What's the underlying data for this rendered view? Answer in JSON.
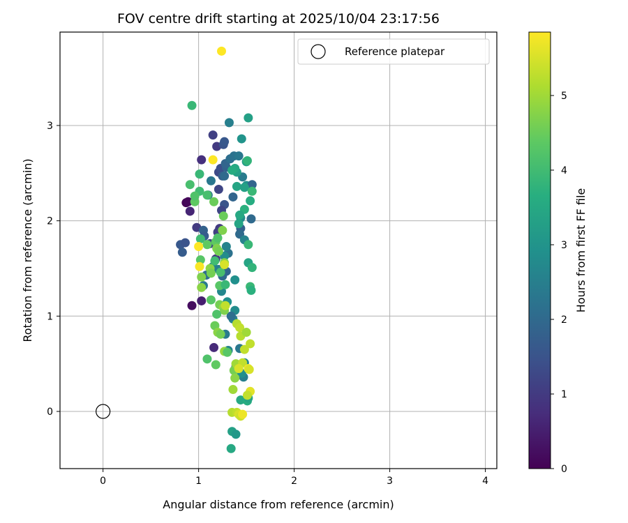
{
  "chart_data": {
    "type": "scatter",
    "title": "FOV centre drift starting at 2025/10/04 23:17:56",
    "xlabel": "Angular distance from reference (arcmin)",
    "ylabel": "Rotation from reference (arcmin)",
    "xlim": [
      -0.45,
      4.12
    ],
    "ylim": [
      -0.6,
      3.98
    ],
    "xticks": [
      0,
      1,
      2,
      3,
      4
    ],
    "yticks": [
      0,
      1,
      2,
      3
    ],
    "grid": true,
    "legend": {
      "position": "top-right",
      "entries": [
        "Reference platepar"
      ]
    },
    "colorbar": {
      "label": "Hours from first FF file",
      "min": 0,
      "max": 5.85,
      "ticks": [
        0,
        1,
        2,
        3,
        4,
        5
      ],
      "colormap": "viridis"
    },
    "reference_point": {
      "name": "Reference platepar",
      "x": 0,
      "y": 0
    },
    "points": [
      {
        "x": 0.87,
        "y": 2.19,
        "c": 0.05
      },
      {
        "x": 0.89,
        "y": 2.2,
        "c": 0.1
      },
      {
        "x": 0.91,
        "y": 2.1,
        "c": 0.6
      },
      {
        "x": 0.93,
        "y": 1.11,
        "c": 0.2
      },
      {
        "x": 1.03,
        "y": 1.16,
        "c": 0.5
      },
      {
        "x": 1.03,
        "y": 2.64,
        "c": 0.8
      },
      {
        "x": 1.16,
        "y": 0.67,
        "c": 0.7
      },
      {
        "x": 1.19,
        "y": 2.78,
        "c": 1.0
      },
      {
        "x": 1.15,
        "y": 2.9,
        "c": 1.1
      },
      {
        "x": 1.18,
        "y": 1.6,
        "c": 0.9
      },
      {
        "x": 1.21,
        "y": 2.33,
        "c": 1.2
      },
      {
        "x": 1.21,
        "y": 2.51,
        "c": 1.3
      },
      {
        "x": 1.26,
        "y": 2.8,
        "c": 1.5
      },
      {
        "x": 1.27,
        "y": 2.83,
        "c": 1.6
      },
      {
        "x": 1.23,
        "y": 2.55,
        "c": 1.4
      },
      {
        "x": 1.25,
        "y": 2.47,
        "c": 1.7
      },
      {
        "x": 1.27,
        "y": 2.17,
        "c": 1.5
      },
      {
        "x": 1.24,
        "y": 2.11,
        "c": 1.2
      },
      {
        "x": 1.22,
        "y": 1.92,
        "c": 1.0
      },
      {
        "x": 1.2,
        "y": 1.88,
        "c": 1.1
      },
      {
        "x": 1.29,
        "y": 2.56,
        "c": 1.8
      },
      {
        "x": 1.28,
        "y": 2.6,
        "c": 1.9
      },
      {
        "x": 1.27,
        "y": 2.47,
        "c": 2.0
      },
      {
        "x": 1.33,
        "y": 2.65,
        "c": 2.1
      },
      {
        "x": 1.36,
        "y": 2.25,
        "c": 1.9
      },
      {
        "x": 1.37,
        "y": 2.68,
        "c": 2.2
      },
      {
        "x": 1.32,
        "y": 3.03,
        "c": 2.5
      },
      {
        "x": 1.42,
        "y": 2.68,
        "c": 2.3
      },
      {
        "x": 1.46,
        "y": 2.46,
        "c": 2.4
      },
      {
        "x": 1.44,
        "y": 1.92,
        "c": 1.8
      },
      {
        "x": 1.43,
        "y": 1.86,
        "c": 2.0
      },
      {
        "x": 1.48,
        "y": 1.8,
        "c": 2.6
      },
      {
        "x": 1.5,
        "y": 2.37,
        "c": 2.9
      },
      {
        "x": 1.56,
        "y": 2.38,
        "c": 1.9
      },
      {
        "x": 1.55,
        "y": 2.02,
        "c": 2.0
      },
      {
        "x": 0.81,
        "y": 1.75,
        "c": 1.6
      },
      {
        "x": 0.83,
        "y": 1.67,
        "c": 1.7
      },
      {
        "x": 0.86,
        "y": 1.77,
        "c": 1.5
      },
      {
        "x": 0.98,
        "y": 1.93,
        "c": 1.0
      },
      {
        "x": 1.05,
        "y": 1.9,
        "c": 1.8
      },
      {
        "x": 1.06,
        "y": 1.84,
        "c": 1.7
      },
      {
        "x": 1.12,
        "y": 1.76,
        "c": 1.2
      },
      {
        "x": 1.1,
        "y": 2.27,
        "c": 2.2
      },
      {
        "x": 1.13,
        "y": 2.42,
        "c": 2.3
      },
      {
        "x": 1.08,
        "y": 1.43,
        "c": 2.1
      },
      {
        "x": 1.05,
        "y": 1.32,
        "c": 2.4
      },
      {
        "x": 1.15,
        "y": 1.52,
        "c": 2.7
      },
      {
        "x": 1.21,
        "y": 1.49,
        "c": 2.5
      },
      {
        "x": 1.25,
        "y": 1.42,
        "c": 2.0
      },
      {
        "x": 1.29,
        "y": 1.47,
        "c": 1.9
      },
      {
        "x": 1.31,
        "y": 1.66,
        "c": 2.2
      },
      {
        "x": 1.29,
        "y": 1.73,
        "c": 2.6
      },
      {
        "x": 1.27,
        "y": 1.63,
        "c": 2.8
      },
      {
        "x": 1.24,
        "y": 1.26,
        "c": 2.7
      },
      {
        "x": 1.3,
        "y": 1.15,
        "c": 2.9
      },
      {
        "x": 1.38,
        "y": 1.06,
        "c": 2.8
      },
      {
        "x": 1.36,
        "y": 0.97,
        "c": 2.6
      },
      {
        "x": 1.34,
        "y": 1.0,
        "c": 2.1
      },
      {
        "x": 1.28,
        "y": 0.81,
        "c": 2.4
      },
      {
        "x": 1.31,
        "y": 0.64,
        "c": 2.6
      },
      {
        "x": 1.43,
        "y": 0.66,
        "c": 2.3
      },
      {
        "x": 1.47,
        "y": 0.36,
        "c": 2.5
      },
      {
        "x": 1.45,
        "y": 0.4,
        "c": 2.9
      },
      {
        "x": 1.48,
        "y": 0.51,
        "c": 2.7
      },
      {
        "x": 1.39,
        "y": 0.47,
        "c": 2.0
      },
      {
        "x": 1.38,
        "y": 1.38,
        "c": 2.9
      },
      {
        "x": 1.44,
        "y": 2.03,
        "c": 2.8
      },
      {
        "x": 1.4,
        "y": 2.51,
        "c": 3.3
      },
      {
        "x": 1.45,
        "y": 2.86,
        "c": 3.0
      },
      {
        "x": 1.5,
        "y": 2.62,
        "c": 3.2
      },
      {
        "x": 1.52,
        "y": 3.08,
        "c": 3.3
      },
      {
        "x": 1.51,
        "y": 2.63,
        "c": 3.8
      },
      {
        "x": 1.38,
        "y": 2.55,
        "c": 3.5
      },
      {
        "x": 1.35,
        "y": 2.53,
        "c": 3.6
      },
      {
        "x": 1.4,
        "y": 2.36,
        "c": 3.4
      },
      {
        "x": 1.48,
        "y": 2.35,
        "c": 3.3
      },
      {
        "x": 1.54,
        "y": 2.21,
        "c": 3.6
      },
      {
        "x": 1.48,
        "y": 2.12,
        "c": 3.7
      },
      {
        "x": 1.43,
        "y": 2.06,
        "c": 3.5
      },
      {
        "x": 1.42,
        "y": 1.97,
        "c": 3.4
      },
      {
        "x": 1.52,
        "y": 1.75,
        "c": 3.9
      },
      {
        "x": 1.52,
        "y": 1.56,
        "c": 3.4
      },
      {
        "x": 1.56,
        "y": 1.51,
        "c": 3.8
      },
      {
        "x": 1.54,
        "y": 1.31,
        "c": 3.9
      },
      {
        "x": 1.55,
        "y": 1.27,
        "c": 3.7
      },
      {
        "x": 1.56,
        "y": 2.31,
        "c": 3.9
      },
      {
        "x": 1.44,
        "y": 0.12,
        "c": 3.5
      },
      {
        "x": 1.51,
        "y": 0.11,
        "c": 3.6
      },
      {
        "x": 1.52,
        "y": 0.14,
        "c": 3.4
      },
      {
        "x": 1.35,
        "y": -0.21,
        "c": 3.3
      },
      {
        "x": 1.39,
        "y": -0.24,
        "c": 3.1
      },
      {
        "x": 1.34,
        "y": -0.39,
        "c": 3.5
      },
      {
        "x": 0.93,
        "y": 3.21,
        "c": 3.9
      },
      {
        "x": 0.91,
        "y": 2.38,
        "c": 4.1
      },
      {
        "x": 1.01,
        "y": 2.49,
        "c": 3.9
      },
      {
        "x": 1.01,
        "y": 2.31,
        "c": 4.0
      },
      {
        "x": 0.96,
        "y": 2.2,
        "c": 4.4
      },
      {
        "x": 0.96,
        "y": 2.26,
        "c": 4.2
      },
      {
        "x": 1.02,
        "y": 1.81,
        "c": 4.0
      },
      {
        "x": 1.02,
        "y": 1.59,
        "c": 4.3
      },
      {
        "x": 1.03,
        "y": 1.41,
        "c": 4.7
      },
      {
        "x": 1.03,
        "y": 1.3,
        "c": 4.8
      },
      {
        "x": 1.09,
        "y": 2.27,
        "c": 4.1
      },
      {
        "x": 1.09,
        "y": 1.75,
        "c": 4.4
      },
      {
        "x": 1.12,
        "y": 1.5,
        "c": 4.8
      },
      {
        "x": 1.13,
        "y": 1.45,
        "c": 4.6
      },
      {
        "x": 1.13,
        "y": 1.17,
        "c": 4.3
      },
      {
        "x": 1.16,
        "y": 2.2,
        "c": 4.5
      },
      {
        "x": 1.17,
        "y": 1.58,
        "c": 4.0
      },
      {
        "x": 1.18,
        "y": 1.78,
        "c": 4.4
      },
      {
        "x": 1.19,
        "y": 1.71,
        "c": 4.7
      },
      {
        "x": 1.2,
        "y": 1.82,
        "c": 4.2
      },
      {
        "x": 1.21,
        "y": 1.68,
        "c": 4.6
      },
      {
        "x": 1.22,
        "y": 1.32,
        "c": 4.3
      },
      {
        "x": 1.23,
        "y": 1.46,
        "c": 4.1
      },
      {
        "x": 1.25,
        "y": 1.9,
        "c": 4.7
      },
      {
        "x": 1.26,
        "y": 2.05,
        "c": 4.5
      },
      {
        "x": 1.27,
        "y": 1.56,
        "c": 4.8
      },
      {
        "x": 1.28,
        "y": 1.33,
        "c": 3.9
      },
      {
        "x": 1.22,
        "y": 1.12,
        "c": 4.6
      },
      {
        "x": 1.26,
        "y": 1.09,
        "c": 4.9
      },
      {
        "x": 1.27,
        "y": 1.06,
        "c": 4.7
      },
      {
        "x": 1.19,
        "y": 1.02,
        "c": 4.2
      },
      {
        "x": 1.17,
        "y": 0.9,
        "c": 4.5
      },
      {
        "x": 1.2,
        "y": 0.83,
        "c": 4.8
      },
      {
        "x": 1.23,
        "y": 0.81,
        "c": 4.6
      },
      {
        "x": 1.09,
        "y": 0.55,
        "c": 4.2
      },
      {
        "x": 1.18,
        "y": 0.49,
        "c": 4.4
      },
      {
        "x": 1.27,
        "y": 0.63,
        "c": 4.9
      },
      {
        "x": 1.3,
        "y": 0.62,
        "c": 4.3
      },
      {
        "x": 1.37,
        "y": 0.43,
        "c": 4.6
      },
      {
        "x": 1.38,
        "y": 0.35,
        "c": 4.8
      },
      {
        "x": 1.36,
        "y": 0.23,
        "c": 5.0
      },
      {
        "x": 1.39,
        "y": 0.5,
        "c": 5.0
      },
      {
        "x": 1.4,
        "y": 0.92,
        "c": 5.2
      },
      {
        "x": 1.43,
        "y": 0.88,
        "c": 5.3
      },
      {
        "x": 1.44,
        "y": 0.79,
        "c": 5.2
      },
      {
        "x": 1.48,
        "y": 0.65,
        "c": 5.3
      },
      {
        "x": 1.5,
        "y": 0.83,
        "c": 5.0
      },
      {
        "x": 1.54,
        "y": 0.71,
        "c": 5.3
      },
      {
        "x": 1.46,
        "y": 0.51,
        "c": 5.3
      },
      {
        "x": 1.52,
        "y": 0.45,
        "c": 5.7
      },
      {
        "x": 1.53,
        "y": 0.44,
        "c": 5.5
      },
      {
        "x": 1.42,
        "y": 0.45,
        "c": 5.5
      },
      {
        "x": 1.54,
        "y": 0.21,
        "c": 5.6
      },
      {
        "x": 1.51,
        "y": 0.17,
        "c": 5.3
      },
      {
        "x": 1.35,
        "y": -0.01,
        "c": 5.2
      },
      {
        "x": 1.4,
        "y": -0.01,
        "c": 5.3
      },
      {
        "x": 1.42,
        "y": -0.03,
        "c": 5.5
      },
      {
        "x": 1.44,
        "y": -0.05,
        "c": 5.4
      },
      {
        "x": 1.46,
        "y": -0.03,
        "c": 5.7
      },
      {
        "x": 1.24,
        "y": 3.78,
        "c": 5.85
      },
      {
        "x": 1.15,
        "y": 2.64,
        "c": 5.85
      },
      {
        "x": 1.0,
        "y": 1.73,
        "c": 5.85
      },
      {
        "x": 1.01,
        "y": 1.52,
        "c": 5.8
      },
      {
        "x": 1.27,
        "y": 1.54,
        "c": 5.5
      },
      {
        "x": 1.28,
        "y": 1.11,
        "c": 5.3
      }
    ]
  }
}
